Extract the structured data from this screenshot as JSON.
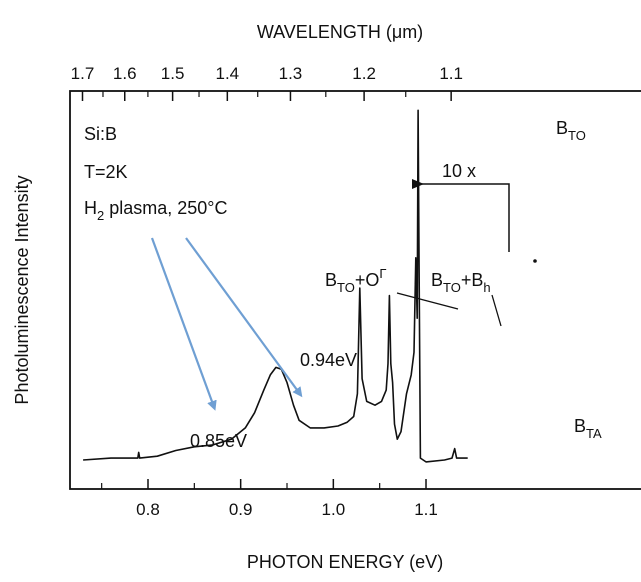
{
  "chart_data": {
    "type": "line",
    "top_axis": {
      "label": "WAVELENGTH (μm)",
      "ticks": [
        {
          "value": 1.7,
          "label": "1.7"
        },
        {
          "value": 1.6,
          "label": "1.6"
        },
        {
          "value": 1.5,
          "label": "1.5"
        },
        {
          "value": 1.4,
          "label": "1.4"
        },
        {
          "value": 1.3,
          "label": "1.3"
        },
        {
          "value": 1.2,
          "label": "1.2"
        },
        {
          "value": 1.1,
          "label": "1.1"
        }
      ]
    },
    "x_axis": {
      "label": "PHOTON ENERGY (eV)",
      "range": [
        0.73,
        1.145
      ],
      "ticks": [
        {
          "value": 0.8,
          "label": "0.8"
        },
        {
          "value": 0.9,
          "label": "0.9"
        },
        {
          "value": 1.0,
          "label": "1.0"
        },
        {
          "value": 1.1,
          "label": "1.1"
        }
      ]
    },
    "y_axis": {
      "label": "Photoluminescence Intensity",
      "range": [
        0,
        1.0
      ],
      "ticks_shown": false
    },
    "series": [
      {
        "points": [
          [
            0.73,
            0.045
          ],
          [
            0.76,
            0.05
          ],
          [
            0.789,
            0.05
          ],
          [
            0.79,
            0.065
          ],
          [
            0.791,
            0.05
          ],
          [
            0.81,
            0.055
          ],
          [
            0.83,
            0.07
          ],
          [
            0.85,
            0.08
          ],
          [
            0.87,
            0.085
          ],
          [
            0.89,
            0.1
          ],
          [
            0.905,
            0.13
          ],
          [
            0.915,
            0.17
          ],
          [
            0.925,
            0.23
          ],
          [
            0.932,
            0.27
          ],
          [
            0.938,
            0.29
          ],
          [
            0.944,
            0.285
          ],
          [
            0.95,
            0.25
          ],
          [
            0.957,
            0.19
          ],
          [
            0.963,
            0.15
          ],
          [
            0.975,
            0.13
          ],
          [
            0.99,
            0.13
          ],
          [
            1.005,
            0.135
          ],
          [
            1.015,
            0.145
          ],
          [
            1.022,
            0.16
          ],
          [
            1.026,
            0.22
          ],
          [
            1.0285,
            0.5
          ],
          [
            1.031,
            0.26
          ],
          [
            1.036,
            0.2
          ],
          [
            1.045,
            0.19
          ],
          [
            1.052,
            0.2
          ],
          [
            1.057,
            0.23
          ],
          [
            1.059,
            0.3
          ],
          [
            1.0605,
            0.48
          ],
          [
            1.062,
            0.3
          ],
          [
            1.064,
            0.25
          ],
          [
            1.066,
            0.14
          ],
          [
            1.069,
            0.1
          ],
          [
            1.073,
            0.12
          ],
          [
            1.079,
            0.22
          ],
          [
            1.084,
            0.27
          ],
          [
            1.087,
            0.33
          ],
          [
            1.089,
            0.58
          ],
          [
            1.0905,
            0.42
          ],
          [
            1.0915,
            0.97
          ],
          [
            1.0925,
            0.55
          ],
          [
            1.094,
            0.05
          ],
          [
            1.1,
            0.04
          ],
          [
            1.12,
            0.045
          ],
          [
            1.128,
            0.05
          ],
          [
            1.131,
            0.075
          ],
          [
            1.133,
            0.05
          ],
          [
            1.145,
            0.05
          ]
        ]
      }
    ],
    "text_annotations": [
      {
        "name": "sample",
        "text": "Si:B"
      },
      {
        "name": "temperature",
        "text": "T=2K"
      }
    ],
    "peak_labels": {
      "bto_right": {
        "base": "B",
        "sub": "TO"
      },
      "bta": {
        "base": "B",
        "sub": "TA"
      },
      "bto_o_gamma": {
        "b": "B",
        "sub": "TO",
        "plus": "+O",
        "sup": "Γ"
      },
      "bto_bh": {
        "b": "B",
        "sub1": "TO",
        "plus": "+B",
        "sub2": "h"
      },
      "peak_094": "0.94eV",
      "peak_085": "0.85eV",
      "ten_x": "10 x"
    },
    "plasma_label": {
      "h": "H",
      "sub": "2",
      "rest": " plasma, 250°C"
    },
    "arrow_color": "#6f9fd3",
    "line_color": "#111111"
  }
}
